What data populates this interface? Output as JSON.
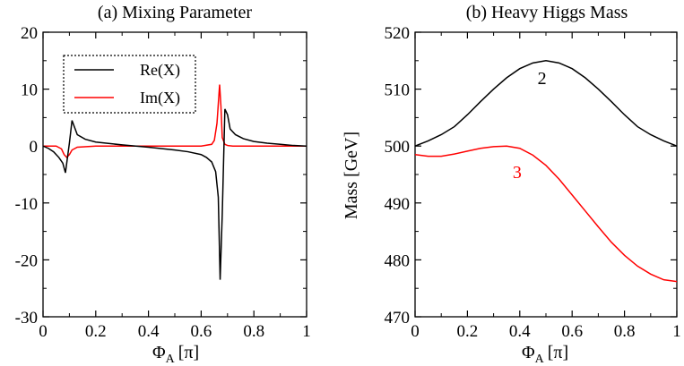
{
  "chart_data": [
    {
      "type": "line",
      "title": "(a) Mixing Parameter",
      "xlabel": "Φ",
      "xlabel_sub": "A",
      "xlabel_unit": "[π]",
      "ylabel": "",
      "xlim": [
        0,
        1
      ],
      "ylim": [
        -30,
        20
      ],
      "xticks": [
        0,
        0.2,
        0.4,
        0.6,
        0.8,
        1
      ],
      "xtick_labels": [
        "0",
        "0.2",
        "0.4",
        "0.6",
        "0.8",
        "1"
      ],
      "yticks": [
        -30,
        -20,
        -10,
        0,
        10,
        20
      ],
      "ytick_labels": [
        "-30",
        "-20",
        "-10",
        "0",
        "10",
        "20"
      ],
      "legend": {
        "position": "top-left",
        "entries": [
          {
            "label": "Re(X)",
            "color": "#000000"
          },
          {
            "label": "Im(X)",
            "color": "#ff0000"
          }
        ]
      },
      "series": [
        {
          "name": "Re(X)",
          "color": "#000000",
          "x": [
            0,
            0.02,
            0.04,
            0.06,
            0.075,
            0.085,
            0.1,
            0.11,
            0.13,
            0.16,
            0.2,
            0.3,
            0.4,
            0.5,
            0.55,
            0.6,
            0.62,
            0.64,
            0.655,
            0.665,
            0.672,
            0.68,
            0.69,
            0.7,
            0.71,
            0.73,
            0.76,
            0.8,
            0.85,
            0.9,
            0.95,
            1.0
          ],
          "y": [
            0,
            -0.4,
            -1.0,
            -2.0,
            -3.0,
            -4.7,
            0.5,
            4.5,
            2.0,
            1.2,
            0.7,
            0.2,
            -0.2,
            -0.7,
            -1.0,
            -1.5,
            -2.0,
            -2.8,
            -4.5,
            -9.0,
            -23.5,
            -12.0,
            6.5,
            5.5,
            3.0,
            2.0,
            1.3,
            0.8,
            0.5,
            0.3,
            0.1,
            0
          ]
        },
        {
          "name": "Im(X)",
          "color": "#ff0000",
          "x": [
            0,
            0.05,
            0.07,
            0.08,
            0.09,
            0.1,
            0.11,
            0.13,
            0.2,
            0.4,
            0.6,
            0.64,
            0.65,
            0.66,
            0.67,
            0.675,
            0.68,
            0.69,
            0.7,
            0.72,
            0.8,
            1.0
          ],
          "y": [
            0,
            0,
            -0.5,
            -1.5,
            -2.0,
            -1.5,
            -0.7,
            -0.2,
            0,
            0,
            0,
            0.3,
            1.0,
            4.0,
            10.8,
            7.0,
            1.5,
            0.3,
            0.1,
            0,
            0,
            0
          ]
        }
      ]
    },
    {
      "type": "line",
      "title": "(b) Heavy Higgs Mass",
      "xlabel": "Φ",
      "xlabel_sub": "A",
      "xlabel_unit": "[π]",
      "ylabel": "Mass [GeV]",
      "xlim": [
        0,
        1
      ],
      "ylim": [
        470,
        520
      ],
      "xticks": [
        0,
        0.2,
        0.4,
        0.6,
        0.8,
        1
      ],
      "xtick_labels": [
        "0",
        "0.2",
        "0.4",
        "0.6",
        "0.8",
        "1"
      ],
      "yticks": [
        470,
        480,
        490,
        500,
        510,
        520
      ],
      "ytick_labels": [
        "470",
        "480",
        "490",
        "500",
        "510",
        "520"
      ],
      "annotations": [
        {
          "text": "2",
          "x": 0.485,
          "y": 512.0,
          "color": "#000000"
        },
        {
          "text": "3",
          "x": 0.39,
          "y": 495.5,
          "color": "#ff0000"
        }
      ],
      "series": [
        {
          "name": "2",
          "color": "#000000",
          "x": [
            0,
            0.05,
            0.1,
            0.15,
            0.2,
            0.25,
            0.3,
            0.35,
            0.4,
            0.45,
            0.5,
            0.55,
            0.6,
            0.65,
            0.7,
            0.75,
            0.8,
            0.85,
            0.9,
            0.95,
            1.0
          ],
          "y": [
            500.0,
            500.9,
            502.0,
            503.4,
            505.5,
            507.8,
            510.0,
            512.0,
            513.6,
            514.6,
            515.0,
            514.6,
            513.6,
            512.0,
            510.0,
            507.8,
            505.5,
            503.4,
            502.0,
            500.9,
            500.0
          ]
        },
        {
          "name": "3",
          "color": "#ff0000",
          "x": [
            0,
            0.05,
            0.1,
            0.15,
            0.2,
            0.25,
            0.3,
            0.35,
            0.4,
            0.45,
            0.5,
            0.55,
            0.6,
            0.65,
            0.7,
            0.75,
            0.8,
            0.85,
            0.9,
            0.95,
            1.0
          ],
          "y": [
            498.5,
            498.2,
            498.2,
            498.6,
            499.1,
            499.6,
            499.9,
            500.0,
            499.6,
            498.4,
            496.6,
            494.2,
            491.4,
            488.6,
            485.8,
            483.1,
            480.8,
            478.9,
            477.5,
            476.5,
            476.2
          ]
        }
      ]
    }
  ]
}
